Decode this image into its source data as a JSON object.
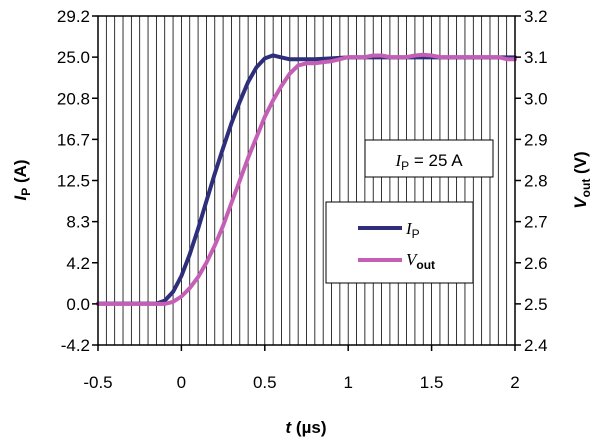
{
  "chart_data": {
    "type": "line",
    "title": "",
    "xlabel": {
      "italic": "t",
      "rest": " (µs)"
    },
    "ylabel_left": {
      "italic": "I",
      "sub": "P",
      "rest": " (A)"
    },
    "ylabel_right": {
      "italic": "V",
      "sub": "out",
      "rest": " (V)"
    },
    "x_range": [
      -0.5,
      2.0
    ],
    "x_ticks": [
      "-0.5",
      "0",
      "0.5",
      "1",
      "1.5",
      "2"
    ],
    "x_tick_values": [
      -0.5,
      0,
      0.5,
      1.0,
      1.5,
      2.0
    ],
    "y_left_range": [
      -4.2,
      29.2
    ],
    "y_left_ticks": [
      "29.2",
      "25.0",
      "20.8",
      "16.7",
      "12.5",
      "8.3",
      "4.2",
      "0.0",
      "-4.2"
    ],
    "y_right_range": [
      2.4,
      3.2
    ],
    "y_right_ticks": [
      "3.2",
      "3.1",
      "3.0",
      "2.9",
      "2.8",
      "2.7",
      "2.6",
      "2.5",
      "2.4"
    ],
    "grid": {
      "vertical_step": 0.05,
      "horizontal": false
    },
    "annotation": {
      "italic": "I",
      "sub": "P",
      "rest": " = 25 A"
    },
    "legend_position": "right-middle",
    "series": [
      {
        "name": {
          "italic": "I",
          "sub": "P",
          "rest": ""
        },
        "axis": "left",
        "color": "#2e2e7a",
        "x": [
          -0.5,
          -0.15,
          -0.1,
          -0.05,
          0.0,
          0.05,
          0.1,
          0.15,
          0.2,
          0.25,
          0.3,
          0.35,
          0.4,
          0.45,
          0.5,
          0.55,
          0.6,
          0.65,
          0.7,
          0.8,
          0.9,
          1.0,
          1.1,
          1.2,
          1.3,
          1.4,
          1.5,
          1.6,
          1.7,
          1.8,
          1.9,
          2.0
        ],
        "y": [
          0.0,
          0.0,
          0.3,
          1.2,
          2.8,
          5.0,
          7.6,
          10.4,
          13.2,
          15.8,
          18.3,
          20.5,
          22.5,
          24.0,
          24.9,
          25.2,
          25.0,
          24.8,
          24.8,
          24.8,
          24.9,
          25.0,
          25.0,
          25.0,
          25.0,
          25.0,
          25.0,
          25.0,
          25.0,
          25.0,
          25.0,
          25.0
        ]
      },
      {
        "name": {
          "italic": "V",
          "sub": "out",
          "rest": ""
        },
        "axis": "right",
        "color": "#c45fb5",
        "x": [
          -0.5,
          -0.1,
          -0.05,
          0.0,
          0.05,
          0.1,
          0.15,
          0.2,
          0.25,
          0.3,
          0.35,
          0.4,
          0.45,
          0.5,
          0.55,
          0.6,
          0.65,
          0.7,
          0.75,
          0.8,
          0.85,
          0.9,
          0.95,
          1.0,
          1.05,
          1.1,
          1.15,
          1.2,
          1.25,
          1.3,
          1.35,
          1.4,
          1.45,
          1.5,
          1.55,
          1.6,
          1.65,
          1.7,
          1.75,
          1.8,
          1.85,
          1.9,
          1.95,
          2.0
        ],
        "y": [
          2.5,
          2.5,
          2.505,
          2.518,
          2.538,
          2.565,
          2.6,
          2.642,
          2.69,
          2.745,
          2.8,
          2.855,
          2.905,
          2.955,
          2.995,
          3.03,
          3.06,
          3.08,
          3.085,
          3.085,
          3.088,
          3.09,
          3.095,
          3.1,
          3.1,
          3.1,
          3.104,
          3.104,
          3.1,
          3.1,
          3.1,
          3.104,
          3.106,
          3.104,
          3.1,
          3.1,
          3.1,
          3.1,
          3.1,
          3.1,
          3.1,
          3.1,
          3.095,
          3.095
        ]
      }
    ]
  }
}
